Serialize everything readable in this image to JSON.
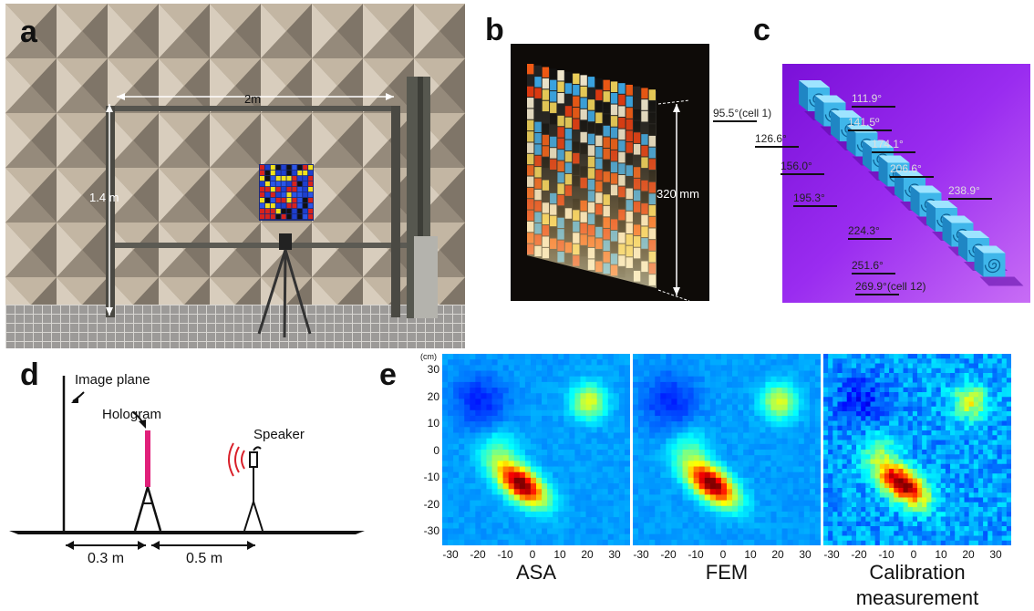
{
  "panels": {
    "a": {
      "letter": "a",
      "width_label": "2m",
      "height_label": "1.4 m"
    },
    "b": {
      "letter": "b",
      "height_label": "320 mm"
    },
    "c": {
      "letter": "c",
      "angles": [
        "95.5°(cell 1)",
        "111.9°",
        "126.6°",
        "141.5º",
        "156.0°",
        "174.1°",
        "195.3°",
        "206.6°",
        "224.3°",
        "238.9°",
        "251.6°",
        "269.9°(cell 12)"
      ]
    },
    "d": {
      "letter": "d",
      "image_plane": "Image plane",
      "hologram": "Hologram",
      "speaker": "Speaker",
      "dist1": "0.3 m",
      "dist2": "0.5 m"
    },
    "e": {
      "letter": "e",
      "unit": "(cm)",
      "y_ticks": [
        "30",
        "20",
        "10",
        "0",
        "-10",
        "-20",
        "-30"
      ],
      "x_ticks": [
        "-30",
        "-20",
        "-10",
        "0",
        "10",
        "20",
        "30"
      ],
      "captions": [
        "ASA",
        "FEM",
        "Calibration\nmeasurement"
      ]
    }
  },
  "colors": {
    "hologram": "#e0207a",
    "speaker_waves": "#d9202a",
    "cell_blue": "#3fb6ea",
    "purple_bg": "#8a1ee0"
  }
}
